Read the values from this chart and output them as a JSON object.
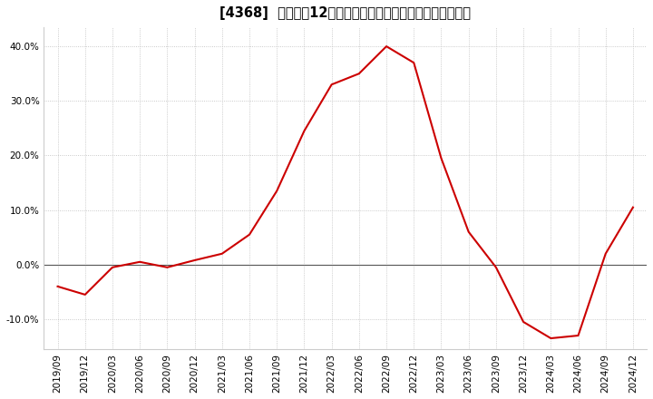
{
  "title": "[4368]  売上高の12か月移動合計の対前年同期増減率の推移",
  "x_labels": [
    "2019/09",
    "2019/12",
    "2020/03",
    "2020/06",
    "2020/09",
    "2020/12",
    "2021/03",
    "2021/06",
    "2021/09",
    "2021/12",
    "2022/03",
    "2022/06",
    "2022/09",
    "2022/12",
    "2023/03",
    "2023/06",
    "2023/09",
    "2023/12",
    "2024/03",
    "2024/06",
    "2024/09",
    "2024/12"
  ],
  "y_values": [
    -0.04,
    -0.055,
    -0.005,
    0.005,
    -0.005,
    0.008,
    0.02,
    0.055,
    0.135,
    0.245,
    0.33,
    0.35,
    0.4,
    0.37,
    0.195,
    0.06,
    -0.005,
    -0.105,
    -0.135,
    -0.13,
    0.02,
    0.105
  ],
  "line_color": "#cc0000",
  "line_width": 1.5,
  "bg_color": "#ffffff",
  "plot_bg_color": "#ffffff",
  "grid_color": "#bbbbbb",
  "zero_line_color": "#555555",
  "ylim": [
    -0.155,
    0.435
  ],
  "yticks": [
    -0.1,
    0.0,
    0.1,
    0.2,
    0.3,
    0.4
  ],
  "title_fontsize": 10.5,
  "tick_fontsize": 7.5
}
